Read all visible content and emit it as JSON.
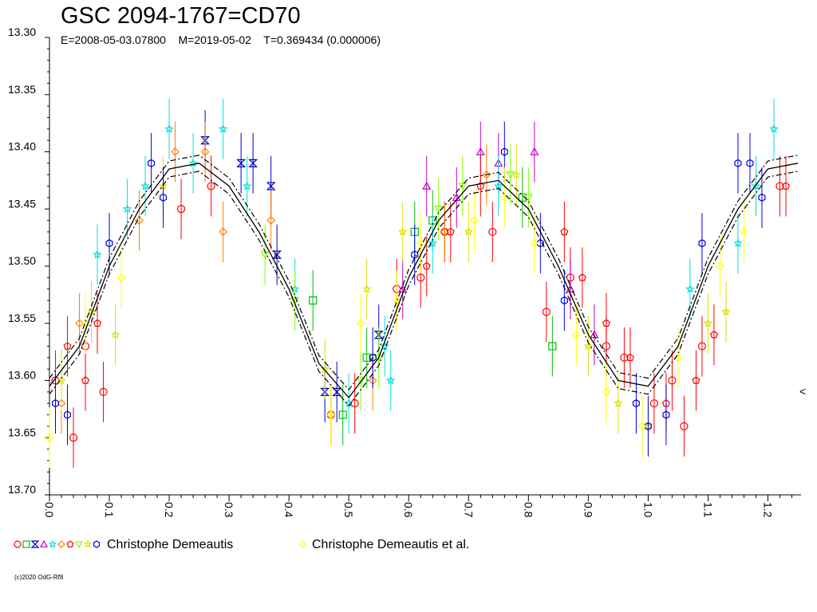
{
  "chart_data": {
    "type": "scatter",
    "title": "GSC 2094-1767=CD70",
    "subtitle": "E=2008-05-03.07800    M=2019-05-02    T=0.369434 (0.000006)",
    "xlabel": "",
    "ylabel": "",
    "xlim": [
      0.0,
      1.25
    ],
    "ylim": [
      13.3,
      13.7
    ],
    "y_inverted": true,
    "x_ticks": [
      "0.0",
      "0.1",
      "0.2",
      "0.3",
      "0.4",
      "0.5",
      "0.6",
      "0.7",
      "0.8",
      "0.9",
      "1.0",
      "1.1",
      "1.2"
    ],
    "y_ticks": [
      "13.30",
      "13.35",
      "13.40",
      "13.45",
      "13.50",
      "13.55",
      "13.60",
      "13.65",
      "13.70"
    ],
    "model": {
      "phase": [
        0.0,
        0.05,
        0.1,
        0.15,
        0.2,
        0.25,
        0.3,
        0.35,
        0.4,
        0.45,
        0.5,
        0.55,
        0.6,
        0.65,
        0.7,
        0.75,
        0.8,
        0.85,
        0.9,
        0.95,
        1.0,
        1.05,
        1.1,
        1.15,
        1.2,
        1.25
      ],
      "mag": [
        13.605,
        13.57,
        13.5,
        13.45,
        13.415,
        13.41,
        13.43,
        13.47,
        13.52,
        13.585,
        13.615,
        13.58,
        13.51,
        13.46,
        13.43,
        13.425,
        13.45,
        13.5,
        13.56,
        13.6,
        13.605,
        13.57,
        13.5,
        13.45,
        13.415,
        13.41
      ],
      "band_offset": 0.007
    },
    "series": [
      {
        "name": "Christophe Demeautis",
        "color": "#ff0000",
        "marker": "circle",
        "x": [
          0.01,
          0.04,
          0.06,
          0.09,
          0.22,
          0.27,
          0.47,
          0.51,
          0.58,
          0.62,
          0.66,
          0.74,
          0.83,
          0.87,
          0.93,
          0.96,
          1.01,
          1.04,
          1.06,
          1.09,
          1.22
        ],
        "y": [
          13.6,
          13.65,
          13.57,
          13.61,
          13.45,
          13.43,
          13.63,
          13.62,
          13.52,
          13.51,
          13.47,
          13.47,
          13.54,
          13.51,
          13.57,
          13.58,
          13.62,
          13.6,
          13.64,
          13.57,
          13.43
        ]
      },
      {
        "name": "Christophe Demeautis",
        "color": "#00c000",
        "marker": "square",
        "x": [
          0.44,
          0.49,
          0.53,
          0.61,
          0.64,
          0.79,
          0.84
        ],
        "y": [
          13.53,
          13.63,
          13.58,
          13.47,
          13.46,
          13.44,
          13.57
        ]
      },
      {
        "name": "Christophe Demeautis",
        "color": "#0000c0",
        "marker": "hourglass",
        "x": [
          0.26,
          0.32,
          0.34,
          0.37,
          0.38,
          0.46,
          0.48,
          0.55
        ],
        "y": [
          13.39,
          13.41,
          13.41,
          13.43,
          13.49,
          13.61,
          13.61,
          13.56
        ]
      },
      {
        "name": "Christophe Demeautis",
        "color": "#c000c0",
        "marker": "triangle",
        "x": [
          0.59,
          0.63,
          0.68,
          0.72,
          0.75,
          0.81,
          0.87,
          0.91
        ],
        "y": [
          13.52,
          13.43,
          13.44,
          13.4,
          13.41,
          13.4,
          13.52,
          13.56
        ]
      },
      {
        "name": "Christophe Demeautis",
        "color": "#00e0e0",
        "marker": "star",
        "x": [
          0.08,
          0.13,
          0.16,
          0.2,
          0.24,
          0.29,
          0.33,
          0.41,
          0.5,
          0.56,
          0.57,
          0.64,
          0.75,
          1.07,
          1.15,
          1.18,
          1.21
        ],
        "y": [
          13.49,
          13.45,
          13.43,
          13.38,
          13.41,
          13.38,
          13.43,
          13.52,
          13.62,
          13.57,
          13.6,
          13.48,
          13.43,
          13.52,
          13.48,
          13.43,
          13.38
        ]
      },
      {
        "name": "Christophe Demeautis",
        "color": "#ff8000",
        "marker": "diamond",
        "x": [
          0.02,
          0.05,
          0.15,
          0.21,
          0.26,
          0.29,
          0.37,
          0.54,
          0.66,
          0.73
        ],
        "y": [
          13.62,
          13.55,
          13.46,
          13.4,
          13.4,
          13.47,
          13.46,
          13.6,
          13.47,
          13.42
        ]
      },
      {
        "name": "Christophe Demeautis",
        "color": "#ff0000",
        "marker": "pentagon",
        "x": [
          0.03,
          0.06,
          0.08,
          0.63,
          0.67,
          0.72,
          0.86,
          0.89,
          0.93,
          0.97,
          1.03,
          1.08,
          1.11,
          1.23
        ],
        "y": [
          13.57,
          13.6,
          13.55,
          13.5,
          13.47,
          13.43,
          13.47,
          13.51,
          13.55,
          13.58,
          13.62,
          13.6,
          13.56,
          13.43
        ]
      },
      {
        "name": "Christophe Demeautis",
        "color": "#80ff00",
        "marker": "triangle-down",
        "x": [
          0.36,
          0.41,
          0.52,
          0.55,
          0.65,
          0.69,
          0.77,
          0.8
        ],
        "y": [
          13.49,
          13.53,
          13.6,
          13.58,
          13.45,
          13.43,
          13.42,
          13.44
        ]
      },
      {
        "name": "Christophe Demeautis",
        "color": "#e0e000",
        "marker": "star",
        "x": [
          0.02,
          0.07,
          0.11,
          0.19,
          0.46,
          0.53,
          0.59,
          0.7,
          0.78,
          0.9,
          0.95,
          1.0,
          1.1,
          1.13
        ],
        "y": [
          13.6,
          13.54,
          13.56,
          13.43,
          13.59,
          13.52,
          13.47,
          13.47,
          13.42,
          13.57,
          13.62,
          13.64,
          13.55,
          13.54
        ]
      },
      {
        "name": "Christophe Demeautis",
        "color": "#0000e0",
        "marker": "hexagon",
        "x": [
          0.01,
          0.03,
          0.1,
          0.17,
          0.19,
          0.54,
          0.61,
          0.76,
          0.82,
          0.86,
          0.98,
          1.0,
          1.03,
          1.09,
          1.15,
          1.17,
          1.19
        ],
        "y": [
          13.62,
          13.63,
          13.48,
          13.41,
          13.44,
          13.58,
          13.49,
          13.4,
          13.48,
          13.53,
          13.62,
          13.64,
          13.63,
          13.48,
          13.41,
          13.41,
          13.44
        ]
      },
      {
        "name": "Christophe Demeautis et al.",
        "color": "#ffff00",
        "marker": "diamond",
        "x": [
          0.0,
          0.06,
          0.12,
          0.47,
          0.52,
          0.58,
          0.62,
          0.71,
          0.76,
          0.81,
          0.88,
          0.93,
          0.99,
          1.05,
          1.12,
          1.16
        ],
        "y": [
          13.65,
          13.55,
          13.51,
          13.63,
          13.55,
          13.53,
          13.48,
          13.46,
          13.44,
          13.48,
          13.56,
          13.61,
          13.64,
          13.58,
          13.5,
          13.47
        ]
      }
    ],
    "legend": {
      "placement": "bottom",
      "entries": [
        {
          "label": "Christophe Demeautis",
          "markers": [
            "circle",
            "square",
            "hourglass",
            "triangle",
            "star",
            "diamond",
            "pentagon",
            "triangle-down",
            "star",
            "hexagon"
          ],
          "colors": [
            "#ff0000",
            "#00c000",
            "#0000c0",
            "#c000c0",
            "#00e0e0",
            "#ff8000",
            "#ff0000",
            "#80ff00",
            "#e0e000",
            "#0000e0"
          ]
        },
        {
          "label": "Christophe Demeautis et al.",
          "markers": [
            "diamond"
          ],
          "colors": [
            "#ffff00"
          ]
        }
      ]
    },
    "right_marker": "<",
    "grid": false
  },
  "copyright": "(c)2020 OdG-Rf8"
}
